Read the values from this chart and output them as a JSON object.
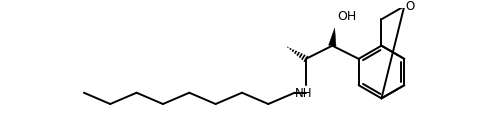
{
  "bond_color": "#000000",
  "background_color": "#ffffff",
  "line_width": 1.4,
  "figsize": [
    4.91,
    1.36
  ],
  "dpi": 100,
  "oh_label": "OH",
  "nh_label": "NH",
  "o_label": "O",
  "font_size": 8.5
}
